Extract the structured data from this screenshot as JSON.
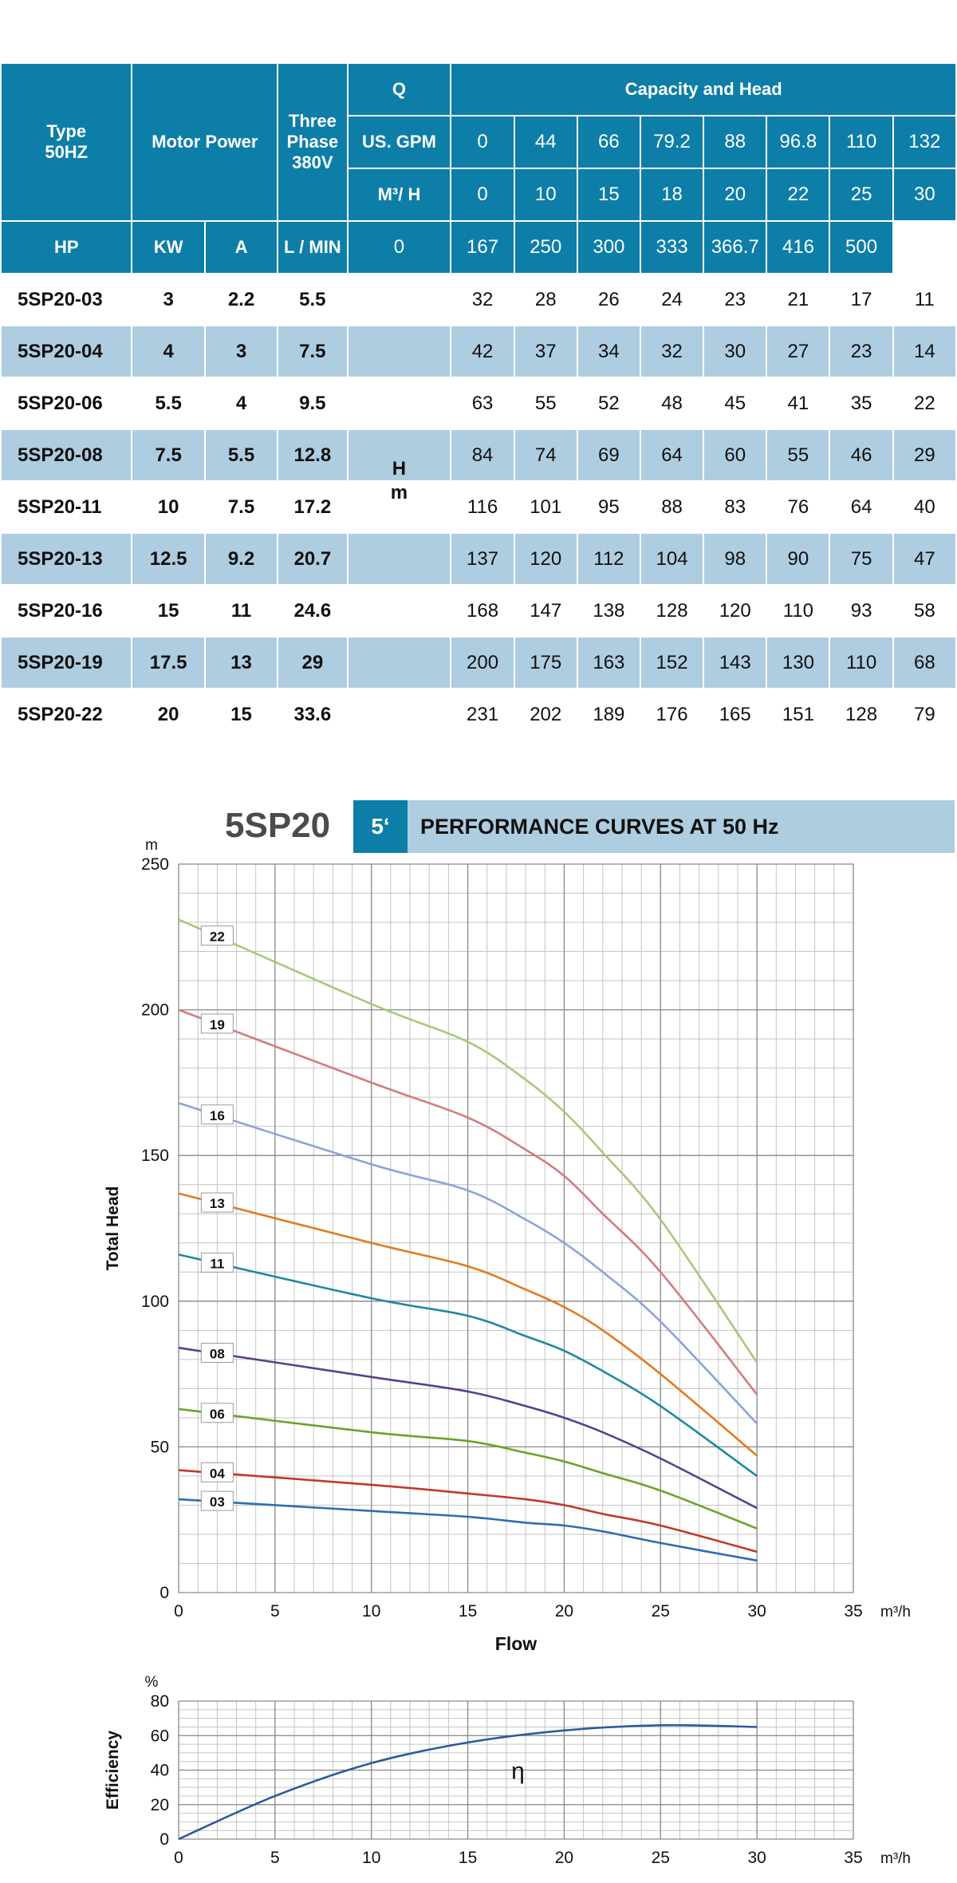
{
  "table": {
    "header": {
      "type": "Type",
      "type_sub": "50HZ",
      "motor_power": "Motor Power",
      "three_phase": "Three",
      "three_phase_2": "Phase",
      "three_phase_3": "380V",
      "q": "Q",
      "capacity_head": "Capacity and Head",
      "gpm_label": "US. GPM",
      "m3h_label": "M³/ H",
      "lmin_label": "L / MIN",
      "hp": "HP",
      "kw": "KW",
      "a": "A",
      "gpm": [
        "0",
        "44",
        "66",
        "79.2",
        "88",
        "96.8",
        "110",
        "132"
      ],
      "m3h": [
        "0",
        "10",
        "15",
        "18",
        "20",
        "22",
        "25",
        "30"
      ],
      "lmin": [
        "0",
        "167",
        "250",
        "300",
        "333",
        "366.7",
        "416",
        "500"
      ]
    },
    "h_label": "H",
    "m_label": "m",
    "rows": [
      {
        "type": "5SP20-03",
        "hp": "3",
        "kw": "2.2",
        "a": "5.5",
        "heads": [
          "32",
          "28",
          "26",
          "24",
          "23",
          "21",
          "17",
          "11"
        ]
      },
      {
        "type": "5SP20-04",
        "hp": "4",
        "kw": "3",
        "a": "7.5",
        "heads": [
          "42",
          "37",
          "34",
          "32",
          "30",
          "27",
          "23",
          "14"
        ]
      },
      {
        "type": "5SP20-06",
        "hp": "5.5",
        "kw": "4",
        "a": "9.5",
        "heads": [
          "63",
          "55",
          "52",
          "48",
          "45",
          "41",
          "35",
          "22"
        ]
      },
      {
        "type": "5SP20-08",
        "hp": "7.5",
        "kw": "5.5",
        "a": "12.8",
        "heads": [
          "84",
          "74",
          "69",
          "64",
          "60",
          "55",
          "46",
          "29"
        ]
      },
      {
        "type": "5SP20-11",
        "hp": "10",
        "kw": "7.5",
        "a": "17.2",
        "heads": [
          "116",
          "101",
          "95",
          "88",
          "83",
          "76",
          "64",
          "40"
        ]
      },
      {
        "type": "5SP20-13",
        "hp": "12.5",
        "kw": "9.2",
        "a": "20.7",
        "heads": [
          "137",
          "120",
          "112",
          "104",
          "98",
          "90",
          "75",
          "47"
        ]
      },
      {
        "type": "5SP20-16",
        "hp": "15",
        "kw": "11",
        "a": "24.6",
        "heads": [
          "168",
          "147",
          "138",
          "128",
          "120",
          "110",
          "93",
          "58"
        ]
      },
      {
        "type": "5SP20-19",
        "hp": "17.5",
        "kw": "13",
        "a": "29",
        "heads": [
          "200",
          "175",
          "163",
          "152",
          "143",
          "130",
          "110",
          "68"
        ]
      },
      {
        "type": "5SP20-22",
        "hp": "20",
        "kw": "15",
        "a": "33.6",
        "heads": [
          "231",
          "202",
          "189",
          "176",
          "165",
          "151",
          "128",
          "79"
        ]
      }
    ]
  },
  "title": {
    "model": "5SP20",
    "size": "5ʻ",
    "subtitle": "PERFORMANCE CURVES AT 50 Hz"
  },
  "colors": {
    "header_blue": "#0d7ea8",
    "row_light_blue": "#aecde0"
  },
  "chart_data": [
    {
      "type": "line",
      "xlabel": "Flow",
      "ylabel": "Total Head",
      "y_unit": "m",
      "x_unit": "m³/h",
      "xlim": [
        0,
        35
      ],
      "ylim": [
        0,
        250
      ],
      "xticks": [
        "0",
        "5",
        "10",
        "15",
        "20",
        "25",
        "30",
        "35"
      ],
      "yticks": [
        "0",
        "50",
        "100",
        "150",
        "200",
        "250"
      ],
      "grid": true,
      "x": [
        0,
        10,
        15,
        18,
        20,
        22,
        25,
        30
      ],
      "series": [
        {
          "name": "03",
          "color": "#2e6db0",
          "values": [
            32,
            28,
            26,
            24,
            23,
            21,
            17,
            11
          ]
        },
        {
          "name": "04",
          "color": "#c0392b",
          "values": [
            42,
            37,
            34,
            32,
            30,
            27,
            23,
            14
          ]
        },
        {
          "name": "06",
          "color": "#6aa329",
          "values": [
            63,
            55,
            52,
            48,
            45,
            41,
            35,
            22
          ]
        },
        {
          "name": "08",
          "color": "#5b3f8c",
          "values": [
            84,
            74,
            69,
            64,
            60,
            55,
            46,
            29
          ]
        },
        {
          "name": "11",
          "color": "#1e8a9e",
          "values": [
            116,
            101,
            95,
            88,
            83,
            76,
            64,
            40
          ]
        },
        {
          "name": "13",
          "color": "#e07b1f",
          "values": [
            137,
            120,
            112,
            104,
            98,
            90,
            75,
            47
          ]
        },
        {
          "name": "16",
          "color": "#8aa4d6",
          "values": [
            168,
            147,
            138,
            128,
            120,
            110,
            93,
            58
          ]
        },
        {
          "name": "19",
          "color": "#d27c7c",
          "values": [
            200,
            175,
            163,
            152,
            143,
            130,
            110,
            68
          ]
        },
        {
          "name": "22",
          "color": "#a8c97a",
          "values": [
            231,
            202,
            189,
            176,
            165,
            151,
            128,
            79
          ]
        }
      ]
    },
    {
      "type": "line",
      "xlabel": "",
      "ylabel": "Efficiency",
      "y_unit": "%",
      "x_unit": "m³/h",
      "xlim": [
        0,
        35
      ],
      "ylim": [
        0,
        80
      ],
      "xticks": [
        "0",
        "5",
        "10",
        "15",
        "20",
        "25",
        "30",
        "35"
      ],
      "yticks": [
        "0",
        "20",
        "40",
        "60",
        "80"
      ],
      "grid": true,
      "x": [
        0,
        5,
        10,
        15,
        20,
        25,
        30
      ],
      "series": [
        {
          "name": "η",
          "color": "#2e5b9a",
          "values": [
            0,
            25,
            44,
            56,
            63,
            66,
            65
          ]
        }
      ]
    }
  ]
}
